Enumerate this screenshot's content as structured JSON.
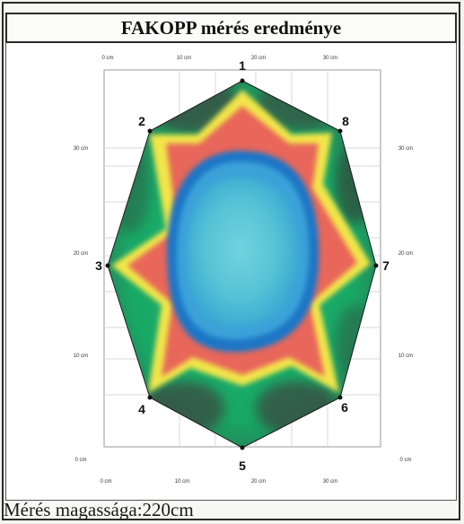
{
  "header": {
    "title": "FAKOPP mérés eredménye"
  },
  "footer": {
    "caption": "Mérés magassága:220cm"
  },
  "top_axis": [
    "0 cm",
    "10 cm",
    "20 cm",
    "30 cm"
  ],
  "bottom_axis": [
    "0 cm",
    "10 cm",
    "20 cm",
    "30 cm"
  ],
  "left_axis": [
    "30 cm",
    "20 cm",
    "10 cm",
    "0 cm"
  ],
  "right_axis": [
    "30 cm",
    "20 cm",
    "10 cm",
    "0 cm"
  ],
  "sensors": [
    "1",
    "2",
    "3",
    "4",
    "5",
    "6",
    "7",
    "8"
  ],
  "colors": {
    "outer_green": "#1fae6a",
    "dark_zone": "#3a4a3d",
    "yellow_ring": "#f5e84a",
    "red_ring": "#e86a5a",
    "blue_ring": "#1f74c4",
    "core_cyan": "#5cc7d8"
  }
}
